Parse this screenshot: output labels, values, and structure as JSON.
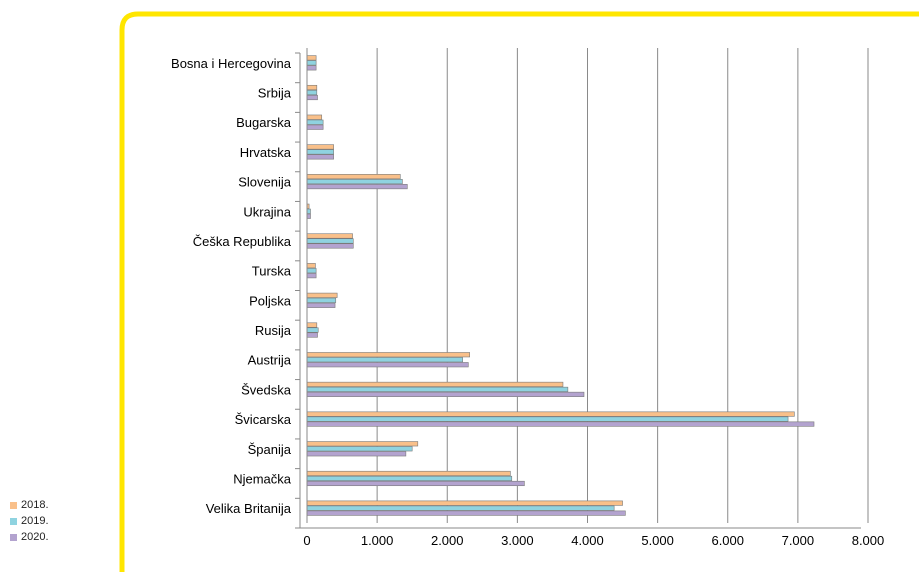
{
  "chart_data": {
    "type": "bar",
    "orientation": "horizontal",
    "categories": [
      "Velika Britanija",
      "Njemačka",
      "Španija",
      "Švicarska",
      "Švedska",
      "Austrija",
      "Rusija",
      "Poljska",
      "Turska",
      "Češka Republika",
      "Ukrajina",
      "Slovenija",
      "Hrvatska",
      "Bugarska",
      "Srbija",
      "Bosna i Hercegovina"
    ],
    "series": [
      {
        "name": "2018.",
        "color": "#f9c08a",
        "values": [
          4500,
          2900,
          1580,
          6950,
          3650,
          2320,
          140,
          430,
          120,
          650,
          30,
          1330,
          380,
          210,
          140,
          130
        ]
      },
      {
        "name": "2019.",
        "color": "#8fd3e0",
        "values": [
          4380,
          2920,
          1500,
          6860,
          3720,
          2220,
          160,
          410,
          130,
          660,
          50,
          1360,
          380,
          230,
          140,
          130
        ]
      },
      {
        "name": "2020.",
        "color": "#b3a3cf",
        "values": [
          4540,
          3100,
          1410,
          7230,
          3950,
          2300,
          150,
          400,
          130,
          660,
          50,
          1430,
          380,
          230,
          150,
          130
        ]
      }
    ],
    "x_tick_labels": [
      "0",
      "1.000",
      "2.000",
      "3.000",
      "4.000",
      "5.000",
      "6.000",
      "7.000",
      "8.000"
    ],
    "xlim": [
      0,
      8000
    ],
    "grid": true,
    "legend_position": "bottom-left",
    "frame_color": "#ffe600"
  }
}
